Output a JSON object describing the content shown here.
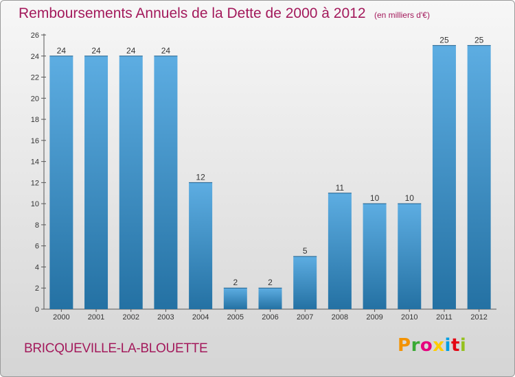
{
  "header": {
    "title": "Remboursements Annuels de la Dette de 2000 à 2012",
    "unit": "(en milliers d'€)"
  },
  "footer": {
    "city": "BRICQUEVILLE-LA-BLOUETTE",
    "logo_letters": [
      "P",
      "r",
      "o",
      "x",
      "i",
      "t",
      "i"
    ],
    "logo_colors": [
      "#f39200",
      "#3aaa35",
      "#e6007e",
      "#ffcc00",
      "#009fe3",
      "#e30613",
      "#95c11f"
    ]
  },
  "colors": {
    "bar_light": "#5dade2",
    "bar_dark": "#2471a3",
    "title": "#a3195b"
  },
  "chart_data": {
    "type": "bar",
    "title": "Remboursements Annuels de la Dette de 2000 à 2012",
    "subtitle": "(en milliers d'€)",
    "categories": [
      "2000",
      "2001",
      "2002",
      "2003",
      "2004",
      "2005",
      "2006",
      "2007",
      "2008",
      "2009",
      "2010",
      "2011",
      "2012"
    ],
    "values": [
      24,
      24,
      24,
      24,
      12,
      2,
      2,
      5,
      11,
      10,
      10,
      25,
      25
    ],
    "data_labels": [
      "24",
      "24",
      "24",
      "24",
      "12",
      "2",
      "2",
      "5",
      "11",
      "10",
      "10",
      "25",
      "25"
    ],
    "ylim": [
      0,
      26
    ],
    "yticks": [
      "0",
      "2",
      "4",
      "6",
      "8",
      "10",
      "12",
      "14",
      "16",
      "18",
      "20",
      "22",
      "24",
      "26"
    ],
    "grid": false,
    "xlabel": "",
    "ylabel": ""
  }
}
